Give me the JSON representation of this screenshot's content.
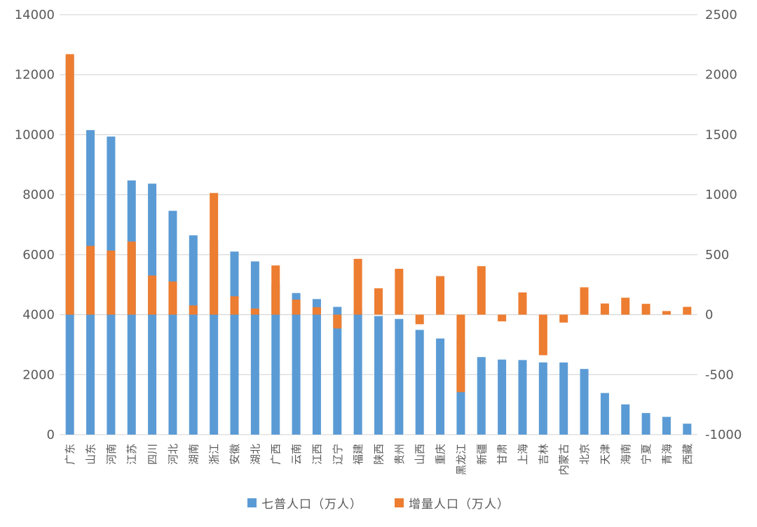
{
  "chart_data": {
    "type": "bar",
    "title": "",
    "bar_style": "overlapped-dual-axis",
    "grid": true,
    "legend_position": "bottom",
    "categories": [
      "广东",
      "山东",
      "河南",
      "江苏",
      "四川",
      "河北",
      "湖南",
      "浙江",
      "安徽",
      "湖北",
      "广西",
      "云南",
      "江西",
      "辽宁",
      "福建",
      "陕西",
      "贵州",
      "山西",
      "重庆",
      "黑龙江",
      "新疆",
      "甘肃",
      "上海",
      "吉林",
      "内蒙古",
      "北京",
      "天津",
      "海南",
      "宁夏",
      "青海",
      "西藏"
    ],
    "series": [
      {
        "name": "七普人口（万人）",
        "axis": "left",
        "color": "#5B9BD5",
        "values": [
          12601,
          10153,
          9937,
          8475,
          8367,
          7461,
          6644,
          6457,
          6103,
          5775,
          5013,
          4721,
          4519,
          4259,
          4154,
          3953,
          3856,
          3492,
          3205,
          3185,
          2585,
          2502,
          2487,
          2407,
          2405,
          2189,
          1387,
          1008,
          720,
          592,
          365
        ]
      },
      {
        "name": "增量人口（万人）",
        "axis": "right",
        "color": "#ED7D31",
        "values": [
          2171,
          573,
          534,
          609,
          326,
          276,
          77,
          1014,
          153,
          51,
          410,
          125,
          62,
          -115,
          465,
          220,
          382,
          -80,
          321,
          -646,
          404,
          -56,
          185,
          -338,
          -66,
          228,
          93,
          141,
          90,
          30,
          65
        ]
      }
    ],
    "left_axis": {
      "min": 0,
      "max": 14000,
      "step": 2000,
      "tick_labels": [
        "0",
        "2000",
        "4000",
        "6000",
        "8000",
        "10000",
        "12000",
        "14000"
      ]
    },
    "right_axis": {
      "min": -1000,
      "max": 2500,
      "step": 500,
      "tick_labels": [
        "-1000",
        "-500",
        "0",
        "500",
        "1000",
        "1500",
        "2000",
        "2500"
      ]
    },
    "colors": {
      "gridline": "#D9D9D9",
      "axis_text": "#595959",
      "background": "#FFFFFF"
    }
  }
}
